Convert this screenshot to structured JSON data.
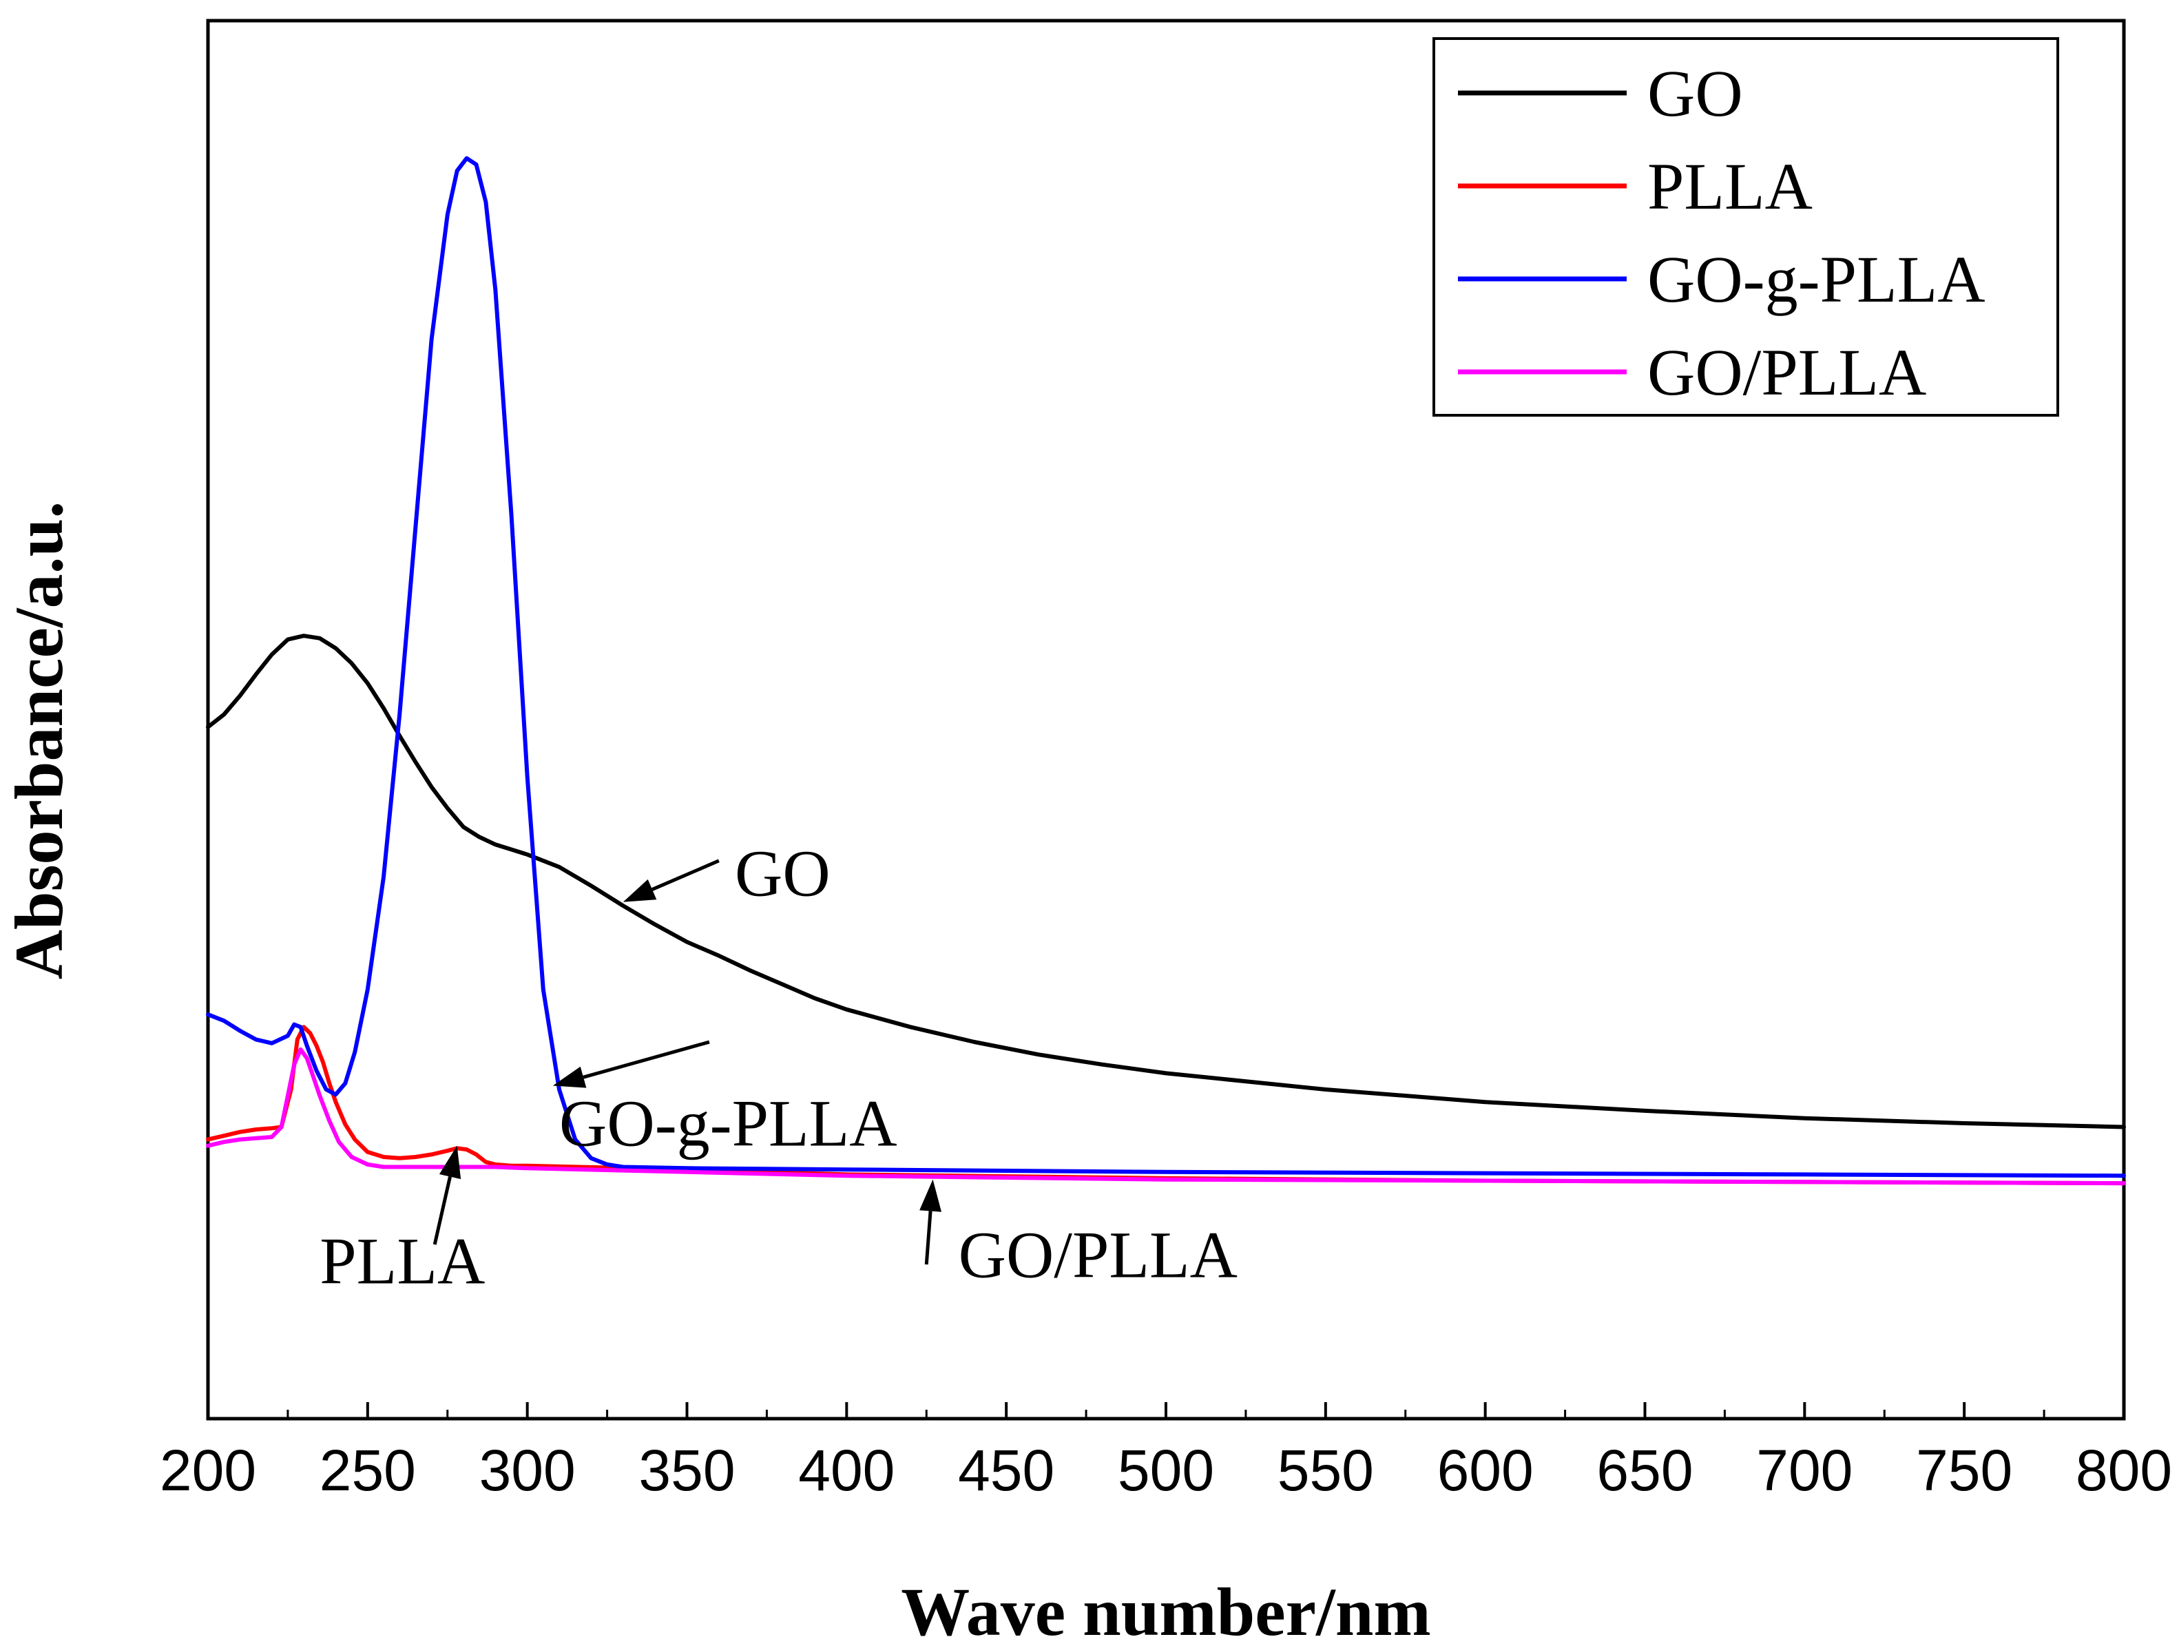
{
  "chart_data": {
    "type": "line",
    "title": "",
    "xlabel": "Wave number/nm",
    "ylabel": "Absorbance/a.u.",
    "xlim": [
      200,
      800
    ],
    "ylim": [
      0,
      1.0
    ],
    "y_ticks_labeled": false,
    "x_ticks": [
      200,
      250,
      300,
      350,
      400,
      450,
      500,
      550,
      600,
      650,
      700,
      750,
      800
    ],
    "x_tick_labels": [
      "200",
      "250",
      "300",
      "350",
      "400",
      "450",
      "500",
      "550",
      "600",
      "650",
      "700",
      "750",
      "800"
    ],
    "grid": false,
    "legend_position": "top-right",
    "series": [
      {
        "name": "GO",
        "color": "#000000",
        "x": [
          200,
          205,
          210,
          215,
          220,
          225,
          230,
          235,
          240,
          245,
          250,
          255,
          260,
          265,
          270,
          275,
          280,
          285,
          290,
          295,
          300,
          310,
          320,
          330,
          340,
          350,
          360,
          370,
          380,
          390,
          400,
          420,
          440,
          460,
          480,
          500,
          550,
          600,
          650,
          700,
          750,
          800
        ],
        "y": [
          0.49,
          0.5,
          0.515,
          0.532,
          0.548,
          0.56,
          0.563,
          0.561,
          0.553,
          0.541,
          0.525,
          0.505,
          0.483,
          0.462,
          0.442,
          0.425,
          0.41,
          0.402,
          0.396,
          0.392,
          0.388,
          0.378,
          0.363,
          0.347,
          0.332,
          0.318,
          0.307,
          0.295,
          0.284,
          0.273,
          0.264,
          0.25,
          0.238,
          0.228,
          0.22,
          0.213,
          0.2,
          0.19,
          0.183,
          0.177,
          0.173,
          0.17
        ]
      },
      {
        "name": "PLLA",
        "color": "#ff0000",
        "x": [
          200,
          205,
          210,
          215,
          220,
          223,
          226,
          228,
          230,
          232,
          234,
          236,
          238,
          240,
          243,
          246,
          250,
          255,
          260,
          265,
          270,
          275,
          278,
          281,
          284,
          287,
          290,
          295,
          300,
          350,
          400,
          500,
          600,
          700,
          800
        ],
        "y": [
          0.16,
          0.163,
          0.166,
          0.168,
          0.169,
          0.17,
          0.2,
          0.24,
          0.25,
          0.245,
          0.235,
          0.222,
          0.205,
          0.19,
          0.172,
          0.16,
          0.15,
          0.146,
          0.145,
          0.146,
          0.148,
          0.151,
          0.153,
          0.152,
          0.148,
          0.142,
          0.14,
          0.139,
          0.139,
          0.136,
          0.132,
          0.129,
          0.127,
          0.126,
          0.125
        ]
      },
      {
        "name": "GO-g-PLLA",
        "color": "#0000ff",
        "x": [
          200,
          205,
          210,
          215,
          220,
          225,
          227,
          229,
          231,
          234,
          237,
          240,
          243,
          246,
          250,
          255,
          260,
          265,
          270,
          275,
          278,
          281,
          284,
          287,
          290,
          295,
          300,
          305,
          310,
          315,
          320,
          325,
          330,
          350,
          400,
          500,
          600,
          700,
          800
        ],
        "y": [
          0.26,
          0.255,
          0.247,
          0.24,
          0.237,
          0.243,
          0.252,
          0.25,
          0.235,
          0.215,
          0.2,
          0.196,
          0.205,
          0.23,
          0.28,
          0.37,
          0.5,
          0.65,
          0.8,
          0.9,
          0.935,
          0.945,
          0.94,
          0.91,
          0.84,
          0.66,
          0.45,
          0.28,
          0.2,
          0.16,
          0.145,
          0.14,
          0.138,
          0.137,
          0.136,
          0.134,
          0.133,
          0.132,
          0.131
        ]
      },
      {
        "name": "GO/PLLA",
        "color": "#ff00ff",
        "x": [
          200,
          205,
          210,
          215,
          220,
          223,
          225,
          227,
          229,
          231,
          233,
          235,
          238,
          241,
          245,
          250,
          255,
          260,
          270,
          280,
          290,
          300,
          350,
          400,
          500,
          600,
          700,
          800
        ],
        "y": [
          0.155,
          0.158,
          0.16,
          0.161,
          0.162,
          0.17,
          0.195,
          0.22,
          0.232,
          0.225,
          0.21,
          0.195,
          0.175,
          0.158,
          0.146,
          0.14,
          0.138,
          0.138,
          0.138,
          0.138,
          0.138,
          0.137,
          0.134,
          0.131,
          0.128,
          0.127,
          0.126,
          0.125
        ]
      }
    ],
    "annotations": [
      {
        "text": "GO",
        "x": 365,
        "y": 0.355,
        "arrow_from": [
          360,
          0.383
        ],
        "arrow_to": [
          330,
          0.35
        ]
      },
      {
        "text": "GO-g-PLLA",
        "x": 310,
        "y": 0.155,
        "arrow_from": [
          357,
          0.238
        ],
        "arrow_to": [
          308,
          0.203
        ]
      },
      {
        "text": "PLLA",
        "x": 235,
        "y": 0.045,
        "arrow_from": [
          271,
          0.076
        ],
        "arrow_to": [
          278,
          0.155
        ]
      },
      {
        "text": "GO/PLLA",
        "x": 435,
        "y": 0.05,
        "arrow_from": [
          425,
          0.06
        ],
        "arrow_to": [
          427,
          0.128
        ]
      }
    ]
  }
}
